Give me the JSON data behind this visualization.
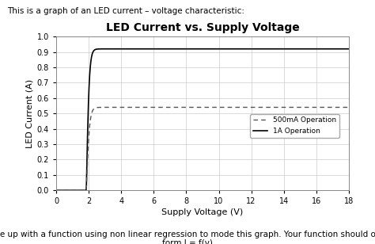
{
  "title": "LED Current vs. Supply Voltage",
  "xlabel": "Supply Voltage (V)",
  "ylabel": "LED Current (A)",
  "xlim": [
    0,
    18
  ],
  "ylim": [
    0,
    1
  ],
  "xticks": [
    0,
    2,
    4,
    6,
    8,
    10,
    12,
    14,
    16,
    18
  ],
  "yticks": [
    0,
    0.1,
    0.2,
    0.3,
    0.4,
    0.5,
    0.6,
    0.7,
    0.8,
    0.9,
    1.0
  ],
  "line1_saturation": 0.92,
  "line2_saturation": 0.54,
  "knee_voltage": 1.85,
  "legend_labels": [
    "500mA Operation",
    "1A Operation"
  ],
  "line1_color": "#000000",
  "line2_color": "#555555",
  "grid_color": "#cccccc",
  "background_color": "#ffffff",
  "title_fontsize": 10,
  "label_fontsize": 8,
  "tick_fontsize": 7,
  "header_text": "This is a graph of an LED current – voltage characteristic:",
  "footer_text1": "Come up with a function using non linear regression to mode this graph. Your function should of the",
  "footer_text2": "form I = f(v)",
  "footer_underline": "non linear"
}
